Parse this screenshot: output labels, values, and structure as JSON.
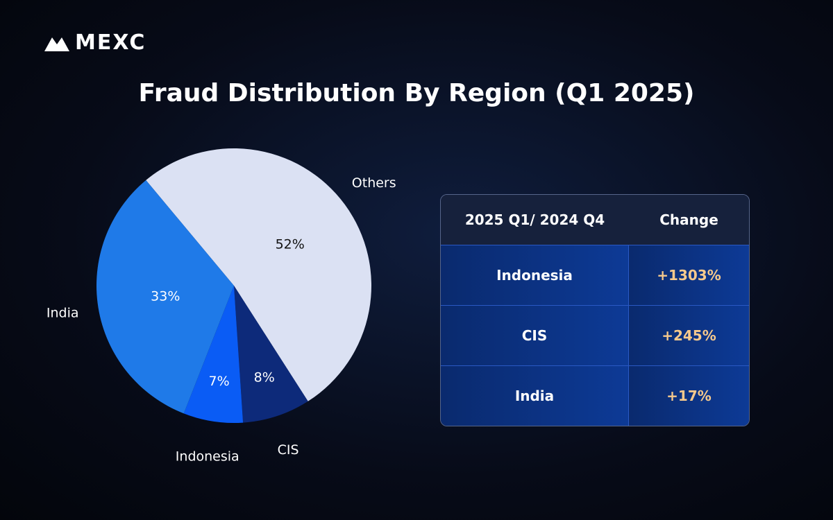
{
  "logo": "MEXC",
  "chart_data": {
    "type": "pie",
    "title": "Fraud Distribution By Region (Q1 2025)",
    "categories": [
      "Others",
      "CIS",
      "Indonesia",
      "India"
    ],
    "values": [
      52,
      8,
      7,
      33
    ],
    "value_labels": [
      "52%",
      "8%",
      "7%",
      "33%"
    ],
    "colors": [
      "#dbe1f3",
      "#0d2a7a",
      "#0a5cf5",
      "#1f7ae8"
    ]
  },
  "table": {
    "header": [
      "2025 Q1/ 2024 Q4",
      "Change"
    ],
    "rows": [
      [
        "Indonesia",
        "+1303%"
      ],
      [
        "CIS",
        "+245%"
      ],
      [
        "India",
        "+17%"
      ]
    ]
  }
}
